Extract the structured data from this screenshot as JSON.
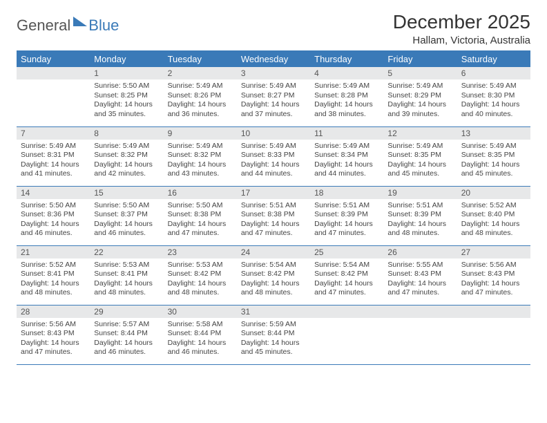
{
  "logo": {
    "general": "General",
    "blue": "Blue"
  },
  "title": "December 2025",
  "location": "Hallam, Victoria, Australia",
  "colors": {
    "header_bg": "#3a7ab8",
    "header_text": "#ffffff",
    "daynum_bg": "#e7e8e9",
    "daynum_text": "#555555",
    "body_text": "#444444",
    "rule": "#3a7ab8"
  },
  "day_labels": [
    "Sunday",
    "Monday",
    "Tuesday",
    "Wednesday",
    "Thursday",
    "Friday",
    "Saturday"
  ],
  "weeks": [
    [
      null,
      {
        "n": "1",
        "sr": "5:50 AM",
        "ss": "8:25 PM",
        "dl": "14 hours and 35 minutes."
      },
      {
        "n": "2",
        "sr": "5:49 AM",
        "ss": "8:26 PM",
        "dl": "14 hours and 36 minutes."
      },
      {
        "n": "3",
        "sr": "5:49 AM",
        "ss": "8:27 PM",
        "dl": "14 hours and 37 minutes."
      },
      {
        "n": "4",
        "sr": "5:49 AM",
        "ss": "8:28 PM",
        "dl": "14 hours and 38 minutes."
      },
      {
        "n": "5",
        "sr": "5:49 AM",
        "ss": "8:29 PM",
        "dl": "14 hours and 39 minutes."
      },
      {
        "n": "6",
        "sr": "5:49 AM",
        "ss": "8:30 PM",
        "dl": "14 hours and 40 minutes."
      }
    ],
    [
      {
        "n": "7",
        "sr": "5:49 AM",
        "ss": "8:31 PM",
        "dl": "14 hours and 41 minutes."
      },
      {
        "n": "8",
        "sr": "5:49 AM",
        "ss": "8:32 PM",
        "dl": "14 hours and 42 minutes."
      },
      {
        "n": "9",
        "sr": "5:49 AM",
        "ss": "8:32 PM",
        "dl": "14 hours and 43 minutes."
      },
      {
        "n": "10",
        "sr": "5:49 AM",
        "ss": "8:33 PM",
        "dl": "14 hours and 44 minutes."
      },
      {
        "n": "11",
        "sr": "5:49 AM",
        "ss": "8:34 PM",
        "dl": "14 hours and 44 minutes."
      },
      {
        "n": "12",
        "sr": "5:49 AM",
        "ss": "8:35 PM",
        "dl": "14 hours and 45 minutes."
      },
      {
        "n": "13",
        "sr": "5:49 AM",
        "ss": "8:35 PM",
        "dl": "14 hours and 45 minutes."
      }
    ],
    [
      {
        "n": "14",
        "sr": "5:50 AM",
        "ss": "8:36 PM",
        "dl": "14 hours and 46 minutes."
      },
      {
        "n": "15",
        "sr": "5:50 AM",
        "ss": "8:37 PM",
        "dl": "14 hours and 46 minutes."
      },
      {
        "n": "16",
        "sr": "5:50 AM",
        "ss": "8:38 PM",
        "dl": "14 hours and 47 minutes."
      },
      {
        "n": "17",
        "sr": "5:51 AM",
        "ss": "8:38 PM",
        "dl": "14 hours and 47 minutes."
      },
      {
        "n": "18",
        "sr": "5:51 AM",
        "ss": "8:39 PM",
        "dl": "14 hours and 47 minutes."
      },
      {
        "n": "19",
        "sr": "5:51 AM",
        "ss": "8:39 PM",
        "dl": "14 hours and 48 minutes."
      },
      {
        "n": "20",
        "sr": "5:52 AM",
        "ss": "8:40 PM",
        "dl": "14 hours and 48 minutes."
      }
    ],
    [
      {
        "n": "21",
        "sr": "5:52 AM",
        "ss": "8:41 PM",
        "dl": "14 hours and 48 minutes."
      },
      {
        "n": "22",
        "sr": "5:53 AM",
        "ss": "8:41 PM",
        "dl": "14 hours and 48 minutes."
      },
      {
        "n": "23",
        "sr": "5:53 AM",
        "ss": "8:42 PM",
        "dl": "14 hours and 48 minutes."
      },
      {
        "n": "24",
        "sr": "5:54 AM",
        "ss": "8:42 PM",
        "dl": "14 hours and 48 minutes."
      },
      {
        "n": "25",
        "sr": "5:54 AM",
        "ss": "8:42 PM",
        "dl": "14 hours and 47 minutes."
      },
      {
        "n": "26",
        "sr": "5:55 AM",
        "ss": "8:43 PM",
        "dl": "14 hours and 47 minutes."
      },
      {
        "n": "27",
        "sr": "5:56 AM",
        "ss": "8:43 PM",
        "dl": "14 hours and 47 minutes."
      }
    ],
    [
      {
        "n": "28",
        "sr": "5:56 AM",
        "ss": "8:43 PM",
        "dl": "14 hours and 47 minutes."
      },
      {
        "n": "29",
        "sr": "5:57 AM",
        "ss": "8:44 PM",
        "dl": "14 hours and 46 minutes."
      },
      {
        "n": "30",
        "sr": "5:58 AM",
        "ss": "8:44 PM",
        "dl": "14 hours and 46 minutes."
      },
      {
        "n": "31",
        "sr": "5:59 AM",
        "ss": "8:44 PM",
        "dl": "14 hours and 45 minutes."
      },
      null,
      null,
      null
    ]
  ],
  "labels": {
    "sunrise": "Sunrise:",
    "sunset": "Sunset:",
    "daylight": "Daylight:"
  }
}
